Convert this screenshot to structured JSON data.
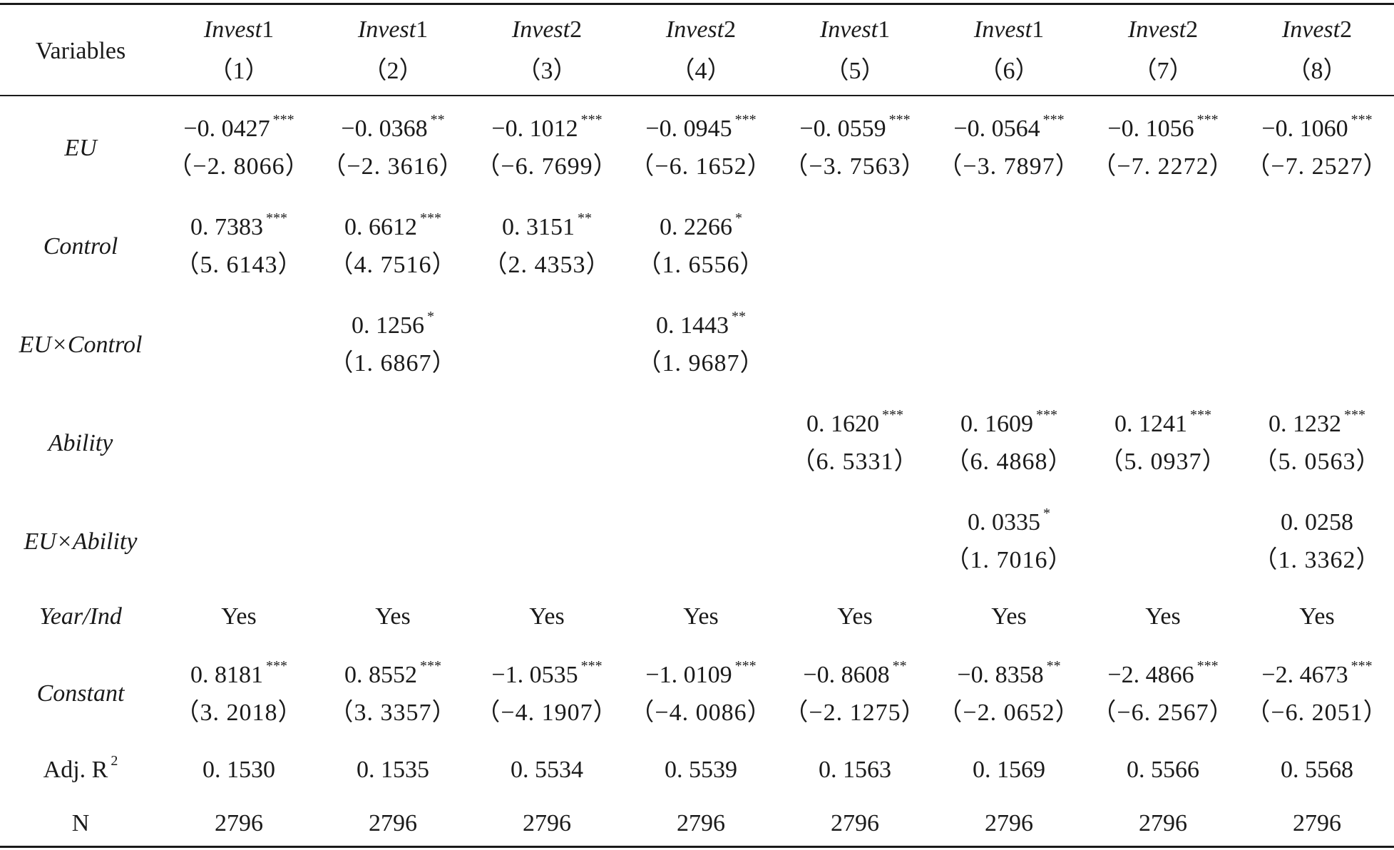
{
  "header": {
    "variables_label": "Variables",
    "columns": [
      {
        "dep": "Invest",
        "dep_num": "1",
        "num": "（1）"
      },
      {
        "dep": "Invest",
        "dep_num": "1",
        "num": "（2）"
      },
      {
        "dep": "Invest",
        "dep_num": "2",
        "num": "（3）"
      },
      {
        "dep": "Invest",
        "dep_num": "2",
        "num": "（4）"
      },
      {
        "dep": "Invest",
        "dep_num": "1",
        "num": "（5）"
      },
      {
        "dep": "Invest",
        "dep_num": "1",
        "num": "（6）"
      },
      {
        "dep": "Invest",
        "dep_num": "2",
        "num": "（7）"
      },
      {
        "dep": "Invest",
        "dep_num": "2",
        "num": "（8）"
      }
    ]
  },
  "rows": [
    {
      "label": "EU",
      "italic": true,
      "cells": [
        {
          "coef": "−0. 0427",
          "sig": "***",
          "t": "（−2. 8066）"
        },
        {
          "coef": "−0. 0368",
          "sig": "**",
          "t": "（−2. 3616）"
        },
        {
          "coef": "−0. 1012",
          "sig": "***",
          "t": "（−6. 7699）"
        },
        {
          "coef": "−0. 0945",
          "sig": "***",
          "t": "（−6. 1652）"
        },
        {
          "coef": "−0. 0559",
          "sig": "***",
          "t": "（−3. 7563）"
        },
        {
          "coef": "−0. 0564",
          "sig": "***",
          "t": "（−3. 7897）"
        },
        {
          "coef": "−0. 1056",
          "sig": "***",
          "t": "（−7. 2272）"
        },
        {
          "coef": "−0. 1060",
          "sig": "***",
          "t": "（−7. 2527）"
        }
      ]
    },
    {
      "label": "Control",
      "italic": true,
      "cells": [
        {
          "coef": "0. 7383",
          "sig": "***",
          "t": "（5. 6143）"
        },
        {
          "coef": "0. 6612",
          "sig": "***",
          "t": "（4. 7516）"
        },
        {
          "coef": "0. 3151",
          "sig": "**",
          "t": "（2. 4353）"
        },
        {
          "coef": "0. 2266",
          "sig": "*",
          "t": "（1. 6556）"
        },
        null,
        null,
        null,
        null
      ]
    },
    {
      "label": "EU×Control",
      "italic": true,
      "cells": [
        null,
        {
          "coef": "0. 1256",
          "sig": "*",
          "t": "（1. 6867）"
        },
        null,
        {
          "coef": "0. 1443",
          "sig": "**",
          "t": "（1. 9687）"
        },
        null,
        null,
        null,
        null
      ]
    },
    {
      "label": "Ability",
      "italic": true,
      "cells": [
        null,
        null,
        null,
        null,
        {
          "coef": "0. 1620",
          "sig": "***",
          "t": "（6. 5331）"
        },
        {
          "coef": "0. 1609",
          "sig": "***",
          "t": "（6. 4868）"
        },
        {
          "coef": "0. 1241",
          "sig": "***",
          "t": "（5. 0937）"
        },
        {
          "coef": "0. 1232",
          "sig": "***",
          "t": "（5. 0563）"
        }
      ]
    },
    {
      "label": "EU×Ability",
      "italic": true,
      "cells": [
        null,
        null,
        null,
        null,
        null,
        {
          "coef": "0. 0335",
          "sig": "*",
          "t": "（1. 7016）"
        },
        null,
        {
          "coef": "0. 0258",
          "sig": "",
          "t": "（1. 3362）"
        }
      ]
    }
  ],
  "year_ind": {
    "label": "Year/Ind",
    "values": [
      "Yes",
      "Yes",
      "Yes",
      "Yes",
      "Yes",
      "Yes",
      "Yes",
      "Yes"
    ]
  },
  "constant": {
    "label": "Constant",
    "cells": [
      {
        "coef": "0. 8181",
        "sig": "***",
        "t": "（3. 2018）"
      },
      {
        "coef": "0. 8552",
        "sig": "***",
        "t": "（3. 3357）"
      },
      {
        "coef": "−1. 0535",
        "sig": "***",
        "t": "（−4. 1907）"
      },
      {
        "coef": "−1. 0109",
        "sig": "***",
        "t": "（−4. 0086）"
      },
      {
        "coef": "−0. 8608",
        "sig": "**",
        "t": "（−2. 1275）"
      },
      {
        "coef": "−0. 8358",
        "sig": "**",
        "t": "（−2. 0652）"
      },
      {
        "coef": "−2. 4866",
        "sig": "***",
        "t": "（−6. 2567）"
      },
      {
        "coef": "−2. 4673",
        "sig": "***",
        "t": "（−6. 2051）"
      }
    ]
  },
  "adj_r2": {
    "label": "Adj. R",
    "label_sup": "2",
    "values": [
      "0. 1530",
      "0. 1535",
      "0. 5534",
      "0. 5539",
      "0. 1563",
      "0. 1569",
      "0. 5566",
      "0. 5568"
    ]
  },
  "n": {
    "label": "N",
    "values": [
      "2796",
      "2796",
      "2796",
      "2796",
      "2796",
      "2796",
      "2796",
      "2796"
    ]
  }
}
